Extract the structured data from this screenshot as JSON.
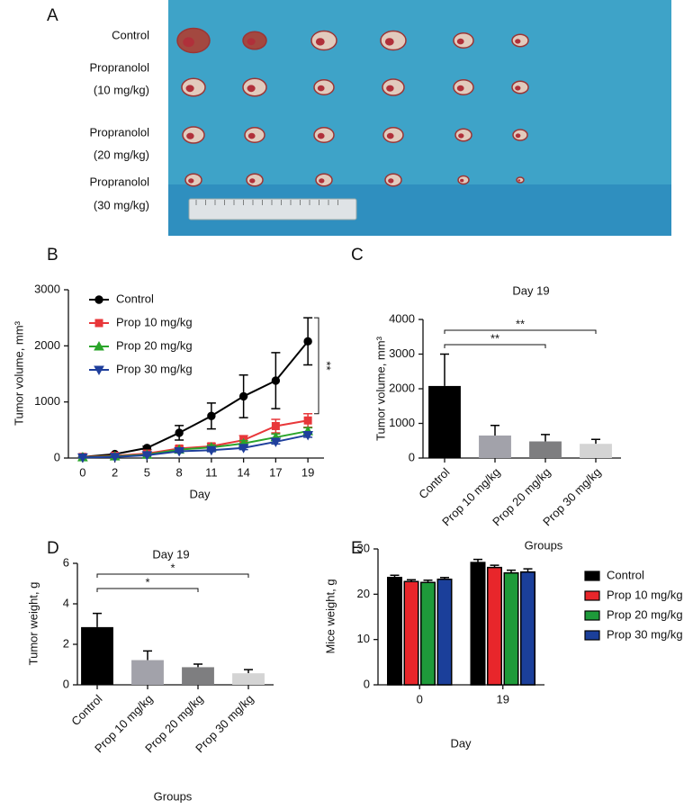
{
  "photo": {
    "panel_label": "A",
    "row_labels": [
      [
        "Control"
      ],
      [
        "Propranolol",
        "(10 mg/kg)"
      ],
      [
        "Propranolol",
        "(20 mg/kg)"
      ],
      [
        "Propranolol",
        "(30 mg/kg)"
      ]
    ]
  },
  "chart_data": [
    {
      "type": "line",
      "panel_label": "B",
      "x_label": "Day",
      "y_label": "Tumor volume, mm³",
      "categories": [
        "0",
        "2",
        "5",
        "8",
        "11",
        "14",
        "17",
        "19"
      ],
      "ylim": [
        0,
        3000
      ],
      "yticks": [
        0,
        1000,
        2000,
        3000
      ],
      "series": [
        {
          "name": "Control",
          "color": "#000000",
          "marker": "circle",
          "values": [
            20,
            70,
            180,
            450,
            750,
            1100,
            1380,
            2080
          ],
          "errors": [
            10,
            15,
            30,
            130,
            230,
            380,
            500,
            420
          ]
        },
        {
          "name": "Prop 10 mg/kg",
          "color": "#e8373a",
          "marker": "square",
          "values": [
            20,
            40,
            80,
            170,
            210,
            320,
            570,
            670
          ],
          "errors": [
            5,
            10,
            15,
            40,
            50,
            80,
            120,
            120
          ]
        },
        {
          "name": "Prop 20 mg/kg",
          "color": "#2aa52a",
          "marker": "triangle",
          "values": [
            15,
            30,
            60,
            150,
            190,
            260,
            370,
            480
          ],
          "errors": [
            5,
            8,
            10,
            30,
            40,
            50,
            60,
            60
          ]
        },
        {
          "name": "Prop 30 mg/kg",
          "color": "#1f3f9c",
          "marker": "triangle-down",
          "values": [
            10,
            20,
            50,
            120,
            140,
            180,
            290,
            410
          ],
          "errors": [
            5,
            5,
            10,
            20,
            25,
            30,
            40,
            40
          ]
        }
      ],
      "annotations": [
        {
          "text": "**",
          "between": [
            "Control",
            "Prop 10 mg/kg"
          ]
        }
      ]
    },
    {
      "type": "bar",
      "panel_label": "C",
      "title": "Day 19",
      "x_label": "Groups",
      "y_label": "Tumor volume, mm³",
      "categories": [
        "Control",
        "Prop 10 mg/kg",
        "Prop 20 mg/kg",
        "Prop 30 mg/kg"
      ],
      "values": [
        2080,
        650,
        480,
        410
      ],
      "errors": [
        920,
        290,
        200,
        130
      ],
      "colors": [
        "#000000",
        "#a2a2aa",
        "#7e7e80",
        "#d4d4d4"
      ],
      "ylim": [
        0,
        4000
      ],
      "yticks": [
        0,
        1000,
        2000,
        3000,
        4000
      ],
      "annotations": [
        {
          "text": "**",
          "between": [
            "Control",
            "Prop 20 mg/kg"
          ]
        },
        {
          "text": "**",
          "between": [
            "Control",
            "Prop 30 mg/kg"
          ]
        }
      ]
    },
    {
      "type": "bar",
      "panel_label": "D",
      "title": "Day 19",
      "x_label": "Groups",
      "y_label": "Tumor weight, g",
      "categories": [
        "Control",
        "Prop 10 mg/kg",
        "Prop 20 mg/kg",
        "Prop 30 mg/kg"
      ],
      "values": [
        2.85,
        1.22,
        0.87,
        0.57
      ],
      "errors": [
        0.68,
        0.45,
        0.15,
        0.18
      ],
      "colors": [
        "#000000",
        "#a2a2aa",
        "#7e7e80",
        "#d4d4d4"
      ],
      "ylim": [
        0,
        6
      ],
      "yticks": [
        0,
        2,
        4,
        6
      ],
      "annotations": [
        {
          "text": "*",
          "between": [
            "Control",
            "Prop 20 mg/kg"
          ]
        },
        {
          "text": "*",
          "between": [
            "Control",
            "Prop 30 mg/kg"
          ]
        }
      ]
    },
    {
      "type": "bar",
      "panel_label": "E",
      "x_label": "Day",
      "y_label": "Mice weight, g",
      "categories": [
        "0",
        "19"
      ],
      "ylim": [
        0,
        30
      ],
      "yticks": [
        0,
        10,
        20,
        30
      ],
      "series": [
        {
          "name": "Control",
          "color": "#000000",
          "values": [
            23.7,
            27.0
          ],
          "errors": [
            0.5,
            0.7
          ]
        },
        {
          "name": "Prop 10 mg/kg",
          "color": "#e8262b",
          "values": [
            22.8,
            25.9
          ],
          "errors": [
            0.4,
            0.5
          ]
        },
        {
          "name": "Prop 20 mg/kg",
          "color": "#1e9a3a",
          "values": [
            22.6,
            24.7
          ],
          "errors": [
            0.5,
            0.6
          ]
        },
        {
          "name": "Prop 30 mg/kg",
          "color": "#1b3f9a",
          "values": [
            23.3,
            24.9
          ],
          "errors": [
            0.4,
            0.7
          ]
        }
      ]
    }
  ]
}
